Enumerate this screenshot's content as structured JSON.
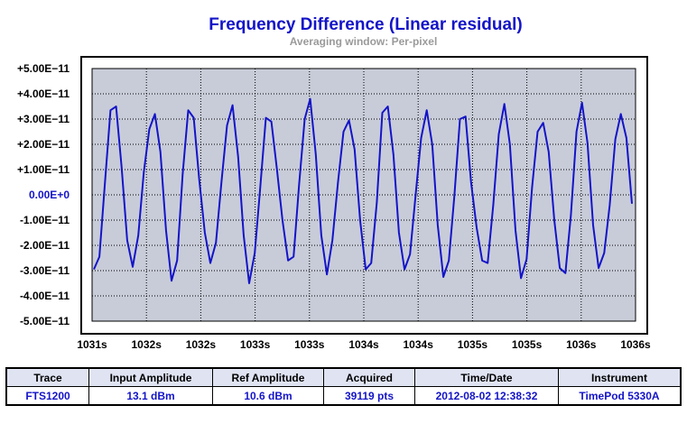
{
  "chart_data": {
    "type": "line",
    "title": "Frequency Difference (Linear residual)",
    "subtitle": "Averaging window: Per-pixel",
    "ylim": [
      -5e-11,
      5e-11
    ],
    "y_ticks": [
      {
        "value": 5e-11,
        "label": "+5.00E−11"
      },
      {
        "value": 4e-11,
        "label": "+4.00E−11"
      },
      {
        "value": 3e-11,
        "label": "+3.00E−11"
      },
      {
        "value": 2e-11,
        "label": "+2.00E−11"
      },
      {
        "value": 1e-11,
        "label": "+1.00E−11"
      },
      {
        "value": 0,
        "label": "0.00E+0"
      },
      {
        "value": -1e-11,
        "label": "-1.00E−11"
      },
      {
        "value": -2e-11,
        "label": "-2.00E−11"
      },
      {
        "value": -3e-11,
        "label": "-3.00E−11"
      },
      {
        "value": -4e-11,
        "label": "-4.00E−11"
      },
      {
        "value": -5e-11,
        "label": "-5.00E−11"
      }
    ],
    "x_tick_labels": [
      "1031s",
      "1032s",
      "1032s",
      "1033s",
      "1033s",
      "1034s",
      "1034s",
      "1035s",
      "1035s",
      "1036s",
      "1036s"
    ],
    "grid": true,
    "line_color": "#1414c8",
    "plot_bg": "#c8ccd8",
    "series": [
      {
        "y": [
          -2.95e-11,
          -2.45e-11,
          5e-12,
          3.35e-11,
          3.5e-11,
          1.1e-11,
          -1.8e-11,
          -2.85e-11,
          -1.6e-11,
          9e-12,
          2.6e-11,
          3.2e-11,
          1.7e-11,
          -1.4e-11,
          -3.4e-11,
          -2.6e-11,
          8e-12,
          3.35e-11,
          3.05e-11,
          6e-12,
          -1.5e-11,
          -2.7e-11,
          -1.9e-11,
          5e-12,
          2.75e-11,
          3.55e-11,
          1.5e-11,
          -1.6e-11,
          -3.5e-11,
          -2.3e-11,
          3e-12,
          3.05e-11,
          2.9e-11,
          1e-11,
          -1e-11,
          -2.6e-11,
          -2.45e-11,
          4e-12,
          3e-11,
          3.8e-11,
          1.6e-11,
          -1.6e-11,
          -3.15e-11,
          -1.8e-11,
          5e-12,
          2.5e-11,
          2.95e-11,
          1.8e-11,
          -1e-11,
          -2.95e-11,
          -2.7e-11,
          -3e-12,
          3.25e-11,
          3.5e-11,
          1.6e-11,
          -1.5e-11,
          -2.95e-11,
          -2.35e-11,
          0.0,
          2.25e-11,
          3.35e-11,
          2e-11,
          -1.2e-11,
          -3.25e-11,
          -2.6e-11,
          0.0,
          3e-11,
          3.1e-11,
          5e-12,
          -1.3e-11,
          -2.6e-11,
          -2.7e-11,
          -4e-12,
          2.4e-11,
          3.6e-11,
          2e-11,
          -1.4e-11,
          -3.3e-11,
          -2.55e-11,
          3e-12,
          2.5e-11,
          2.85e-11,
          1.7e-11,
          -1e-11,
          -2.9e-11,
          -3.1e-11,
          -8e-12,
          2.5e-11,
          3.65e-11,
          2.05e-11,
          -1.2e-11,
          -2.9e-11,
          -2.3e-11,
          -4e-12,
          2.2e-11,
          3.2e-11,
          2.25e-11,
          -3.5e-12
        ]
      }
    ]
  },
  "info_table": {
    "headers": [
      "Trace",
      "Input Amplitude",
      "Ref Amplitude",
      "Acquired",
      "Time/Date",
      "Instrument"
    ],
    "values": [
      "FTS1200",
      "13.1 dBm",
      "10.6 dBm",
      "39119 pts",
      "2012-08-02 12:38:32",
      "TimePod 5330A"
    ]
  }
}
